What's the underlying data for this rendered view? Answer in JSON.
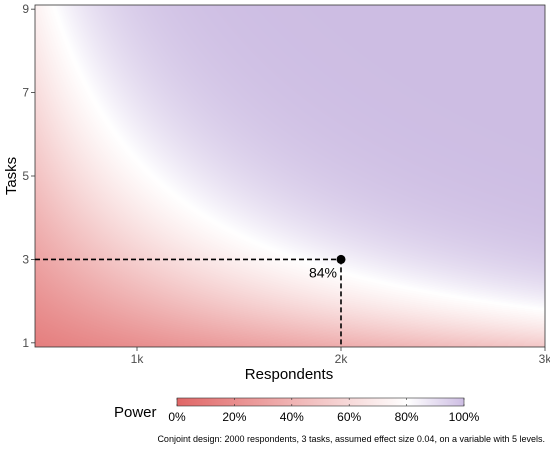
{
  "chart_data": {
    "type": "heatmap",
    "xlabel": "Respondents",
    "ylabel": "Tasks",
    "xlim": [
      500,
      3000
    ],
    "ylim": [
      0.9,
      9.1
    ],
    "x_ticks": [
      1000,
      2000,
      3000
    ],
    "x_tick_labels": [
      "1k",
      "2k",
      "3k"
    ],
    "y_ticks": [
      1,
      3,
      5,
      7,
      9
    ],
    "y_tick_labels": [
      "1",
      "3",
      "5",
      "7",
      "9"
    ],
    "grid": false,
    "fill_variable": "Power",
    "scale": {
      "low_color": "#e06666",
      "mid_color": "#ffffff",
      "high_color": "#cdbde3",
      "midpoint": 0.8,
      "limits": [
        0,
        1
      ]
    },
    "legend": {
      "title": "Power",
      "position": "bottom",
      "labels": [
        "0%",
        "20%",
        "40%",
        "60%",
        "80%",
        "100%"
      ],
      "breaks": [
        0,
        0.2,
        0.4,
        0.6,
        0.8,
        1.0
      ]
    },
    "highlight": {
      "respondents": 2000,
      "tasks": 3,
      "power_label": "84%"
    },
    "caption": "Conjoint design: 2000 respondents, 3 tasks, assumed effect size 0.04, on a variable with 5 levels."
  }
}
